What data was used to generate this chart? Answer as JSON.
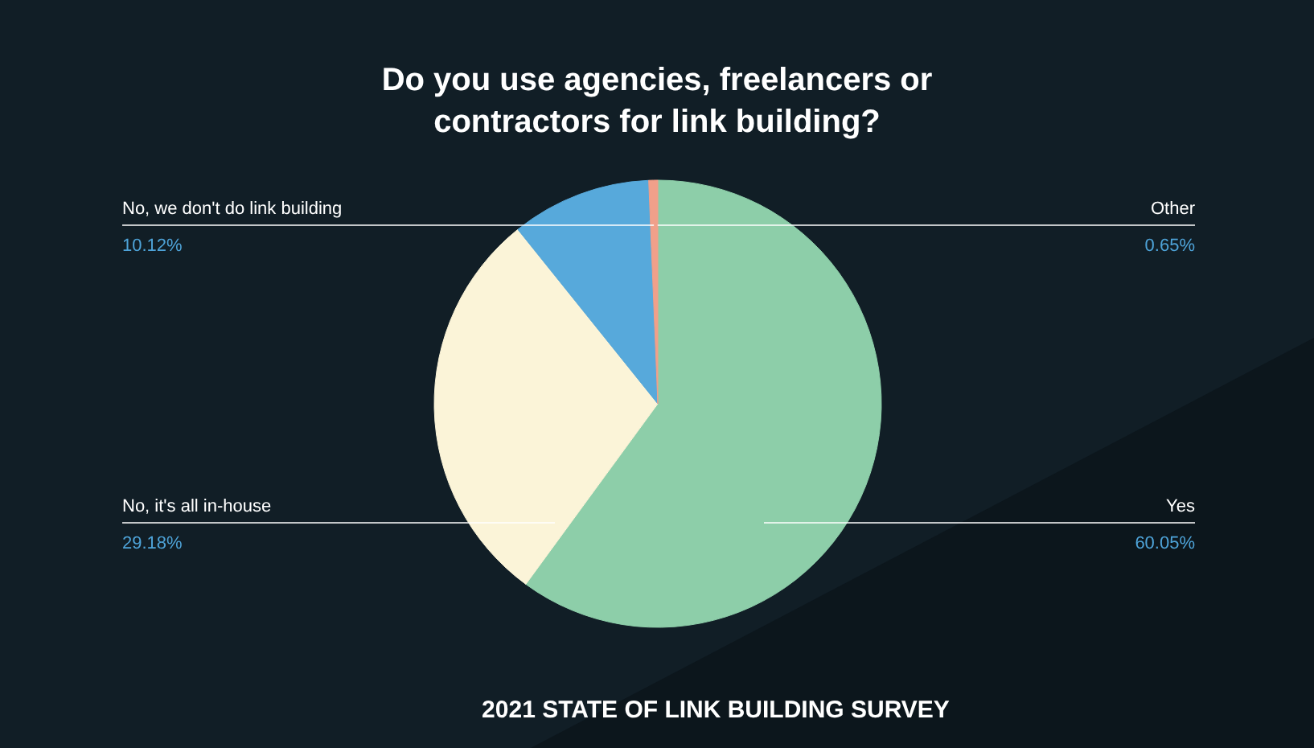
{
  "chart_data": {
    "type": "pie",
    "title": "Do you use agencies, freelancers or contractors for link building?",
    "categories": [
      "Yes",
      "No, it's all in-house",
      "No, we don't do link building",
      "Other"
    ],
    "values": [
      60.05,
      29.18,
      10.12,
      0.65
    ],
    "colors": [
      "#8dcea9",
      "#fbf4d8",
      "#57a9db",
      "#f0a08a"
    ],
    "value_labels": [
      "60.05%",
      "29.18%",
      "10.12%",
      "0.65%"
    ],
    "annotations": [
      "2021 STATE OF LINK BUILDING SURVEY"
    ]
  }
}
